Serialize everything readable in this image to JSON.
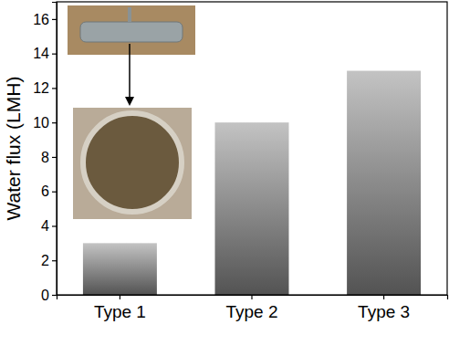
{
  "chart_data": {
    "type": "bar",
    "categories": [
      "Type 1",
      "Type 2",
      "Type 3"
    ],
    "values": [
      3,
      10,
      13
    ],
    "color": "#6e6e6e",
    "y_label": "Water flux (LMH)",
    "ylim": [
      0,
      17
    ],
    "yticks": [
      0,
      2,
      4,
      6,
      8,
      10,
      12,
      14,
      16
    ],
    "grid": false
  }
}
